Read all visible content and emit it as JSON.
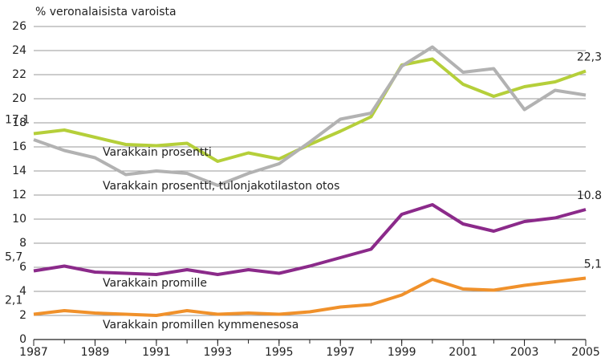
{
  "chart_data": {
    "type": "line",
    "y_label": "% veronalaisista varoista",
    "x": [
      1987,
      1988,
      1989,
      1990,
      1991,
      1992,
      1993,
      1994,
      1995,
      1996,
      1997,
      1998,
      1999,
      2000,
      2001,
      2002,
      2003,
      2004,
      2005
    ],
    "xlim": [
      1987,
      2005
    ],
    "xticks": [
      1987,
      1989,
      1991,
      1993,
      1995,
      1997,
      1999,
      2001,
      2003,
      2005
    ],
    "ylim": [
      0,
      26
    ],
    "yticks": [
      0,
      2,
      4,
      6,
      8,
      10,
      12,
      14,
      16,
      18,
      20,
      22,
      24,
      26
    ],
    "grid": true,
    "series": [
      {
        "name": "Varakkain prosentti",
        "color": "#b5cf3a",
        "values": [
          17.1,
          17.4,
          16.8,
          16.2,
          16.1,
          16.3,
          14.8,
          15.5,
          15.0,
          16.2,
          17.3,
          18.5,
          22.8,
          23.3,
          21.2,
          20.2,
          21.0,
          21.4,
          22.3
        ],
        "value_labels": [
          "17,1",
          null,
          null,
          null,
          null,
          null,
          null,
          null,
          null,
          null,
          null,
          null,
          null,
          null,
          null,
          null,
          null,
          null,
          "22,3"
        ]
      },
      {
        "name": "Varakkain prosentti, tulonjakotilaston otos",
        "color": "#b2b2b2",
        "values": [
          16.6,
          15.7,
          15.1,
          13.7,
          14.0,
          13.8,
          12.8,
          13.8,
          14.6,
          16.4,
          18.3,
          18.8,
          22.7,
          24.3,
          22.2,
          22.5,
          19.1,
          20.7,
          20.3
        ]
      },
      {
        "name": "Varakkain promille",
        "color": "#8b2a8a",
        "values": [
          5.7,
          6.1,
          5.6,
          5.5,
          5.4,
          5.8,
          5.4,
          5.8,
          5.5,
          6.1,
          6.8,
          7.5,
          10.4,
          11.2,
          9.6,
          9.0,
          9.8,
          10.1,
          10.8
        ],
        "value_labels": [
          "5,7",
          null,
          null,
          null,
          null,
          null,
          null,
          null,
          null,
          null,
          null,
          null,
          null,
          null,
          null,
          null,
          null,
          null,
          "10.8"
        ]
      },
      {
        "name": "Varakkain promillen kymmenesosa",
        "color": "#f0912b",
        "values": [
          2.1,
          2.4,
          2.2,
          2.1,
          2.0,
          2.4,
          2.1,
          2.2,
          2.1,
          2.3,
          2.7,
          2.9,
          3.7,
          5.0,
          4.2,
          4.1,
          4.5,
          4.8,
          5.1
        ],
        "value_labels": [
          "2,1",
          null,
          null,
          null,
          null,
          null,
          null,
          null,
          null,
          null,
          null,
          null,
          null,
          null,
          null,
          null,
          null,
          null,
          "5,1"
        ]
      }
    ]
  }
}
